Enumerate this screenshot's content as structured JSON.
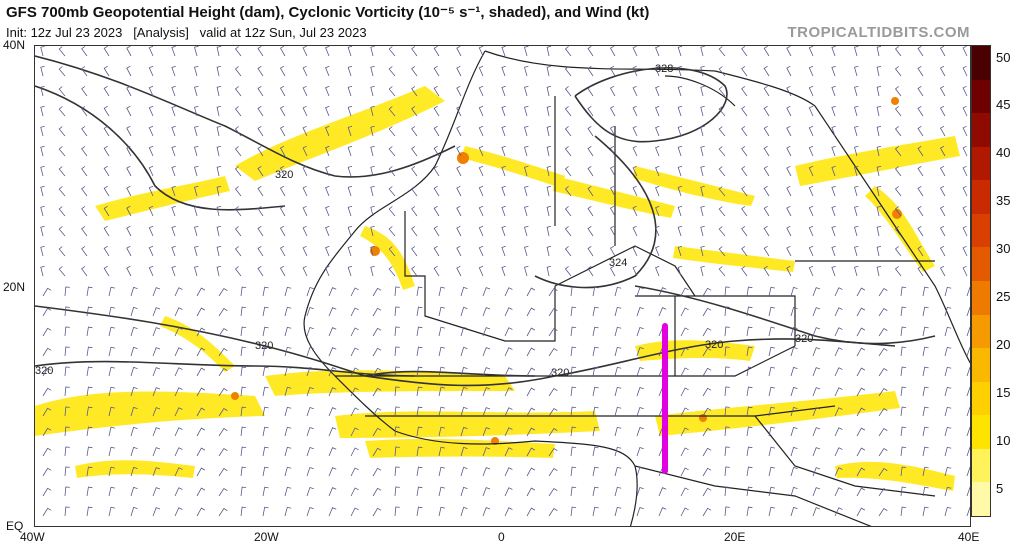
{
  "header": {
    "title": "GFS 700mb Geopotential Height (dam), Cyclonic Vorticity (10⁻⁵ s⁻¹, shaded), and Wind (kt)",
    "subtitle": "Init: 12z Jul 23 2023   [Analysis]   valid at 12z Sun, Jul 23 2023",
    "brand": "TROPICALTIDBITS.COM"
  },
  "axes": {
    "lat_labels": [
      "40N",
      "20N",
      "EQ"
    ],
    "lon_labels": [
      "40W",
      "20W",
      "0",
      "20E",
      "40E"
    ]
  },
  "contour_labels": [
    "328",
    "320",
    "324",
    "320",
    "320",
    "320",
    "320",
    "320"
  ],
  "colorbar": {
    "labels": [
      "50",
      "45",
      "40",
      "35",
      "30",
      "25",
      "20",
      "15",
      "10",
      "5"
    ],
    "colors": [
      "#4a0000",
      "#6e0000",
      "#8f0a00",
      "#b01800",
      "#c92a00",
      "#d94000",
      "#e45a00",
      "#ee7a00",
      "#f59a00",
      "#fbb800",
      "#ffd000",
      "#ffe400",
      "#fff25a",
      "#fff9a8"
    ]
  },
  "marker": {
    "color": "#e000e0"
  }
}
